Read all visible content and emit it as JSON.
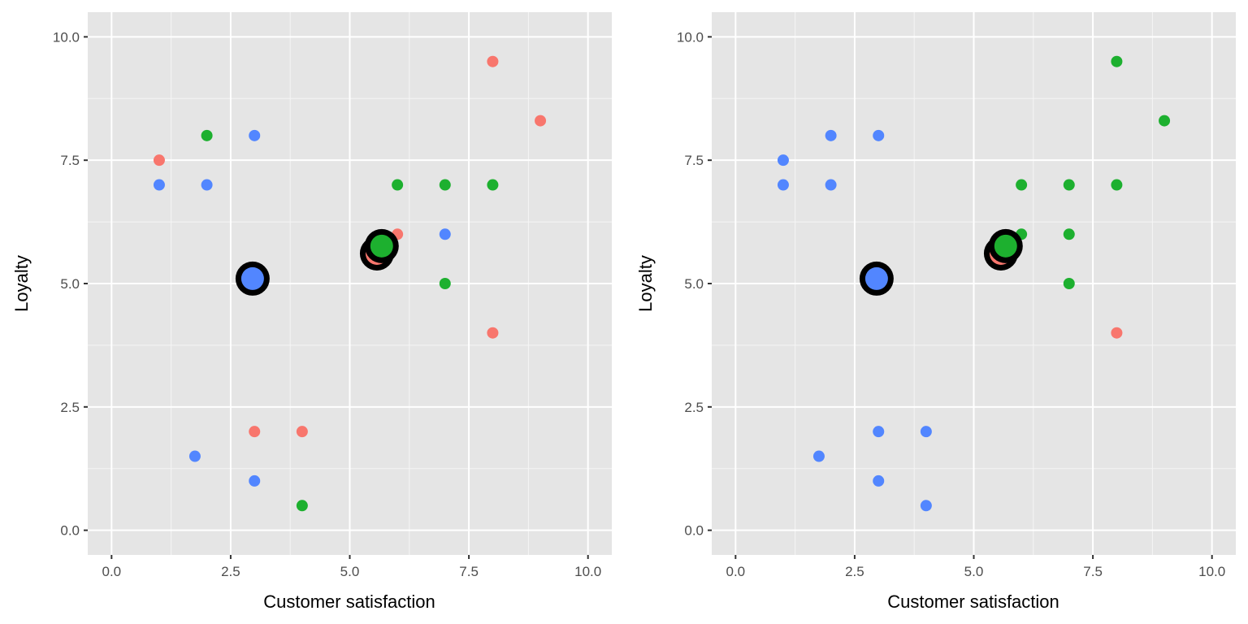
{
  "chart_data": [
    {
      "type": "scatter",
      "panel": "left",
      "xlabel": "Customer satisfaction",
      "ylabel": "Loyalty",
      "xlim": [
        -0.5,
        10.5
      ],
      "ylim": [
        -0.5,
        10.5
      ],
      "xticks": [
        0,
        2.5,
        5,
        7.5,
        10
      ],
      "yticks": [
        0,
        2.5,
        5,
        7.5,
        10
      ],
      "xtick_labels": [
        "0.0",
        "2.5",
        "5.0",
        "7.5",
        "10.0"
      ],
      "ytick_labels": [
        "0.0",
        "2.5",
        "5.0",
        "7.5",
        "10.0"
      ],
      "grid": true,
      "series": [
        {
          "name": "cluster-red",
          "color": "#F8766D",
          "points": [
            [
              1,
              7.5
            ],
            [
              8,
              9.5
            ],
            [
              9,
              8.3
            ],
            [
              6,
              6
            ],
            [
              8,
              4
            ],
            [
              3,
              2
            ],
            [
              4,
              2
            ]
          ]
        },
        {
          "name": "cluster-green",
          "color": "#1DB02F",
          "points": [
            [
              2,
              8
            ],
            [
              6,
              7
            ],
            [
              7,
              7
            ],
            [
              8,
              7
            ],
            [
              7,
              5
            ],
            [
              4,
              0.5
            ]
          ]
        },
        {
          "name": "cluster-blue",
          "color": "#5286FF",
          "points": [
            [
              3,
              8
            ],
            [
              1,
              7
            ],
            [
              2,
              7
            ],
            [
              7,
              6
            ],
            [
              1.75,
              1.5
            ],
            [
              3,
              1
            ]
          ]
        }
      ],
      "centroids": [
        {
          "name": "centroid-red",
          "color": "#F8766D",
          "x": 5.57,
          "y": 5.61
        },
        {
          "name": "centroid-green",
          "color": "#1DB02F",
          "x": 5.67,
          "y": 5.76
        },
        {
          "name": "centroid-blue",
          "color": "#5286FF",
          "x": 2.96,
          "y": 5.1
        }
      ]
    },
    {
      "type": "scatter",
      "panel": "right",
      "xlabel": "Customer satisfaction",
      "ylabel": "Loyalty",
      "xlim": [
        -0.5,
        10.5
      ],
      "ylim": [
        -0.5,
        10.5
      ],
      "xticks": [
        0,
        2.5,
        5,
        7.5,
        10
      ],
      "yticks": [
        0,
        2.5,
        5,
        7.5,
        10
      ],
      "xtick_labels": [
        "0.0",
        "2.5",
        "5.0",
        "7.5",
        "10.0"
      ],
      "ytick_labels": [
        "0.0",
        "2.5",
        "5.0",
        "7.5",
        "10.0"
      ],
      "grid": true,
      "series": [
        {
          "name": "cluster-red",
          "color": "#F8766D",
          "points": [
            [
              8,
              4
            ]
          ]
        },
        {
          "name": "cluster-green",
          "color": "#1DB02F",
          "points": [
            [
              8,
              9.5
            ],
            [
              9,
              8.3
            ],
            [
              6,
              7
            ],
            [
              7,
              7
            ],
            [
              8,
              7
            ],
            [
              6,
              6
            ],
            [
              7,
              6
            ],
            [
              7,
              5
            ]
          ]
        },
        {
          "name": "cluster-blue",
          "color": "#5286FF",
          "points": [
            [
              1,
              7.5
            ],
            [
              2,
              8
            ],
            [
              3,
              8
            ],
            [
              1,
              7
            ],
            [
              2,
              7
            ],
            [
              1.75,
              1.5
            ],
            [
              3,
              2
            ],
            [
              4,
              2
            ],
            [
              3,
              1
            ],
            [
              4,
              0.5
            ]
          ]
        }
      ],
      "centroids": [
        {
          "name": "centroid-red",
          "color": "#F8766D",
          "x": 5.57,
          "y": 5.61
        },
        {
          "name": "centroid-green",
          "color": "#1DB02F",
          "x": 5.67,
          "y": 5.76
        },
        {
          "name": "centroid-blue",
          "color": "#5286FF",
          "x": 2.96,
          "y": 5.1
        }
      ]
    }
  ]
}
